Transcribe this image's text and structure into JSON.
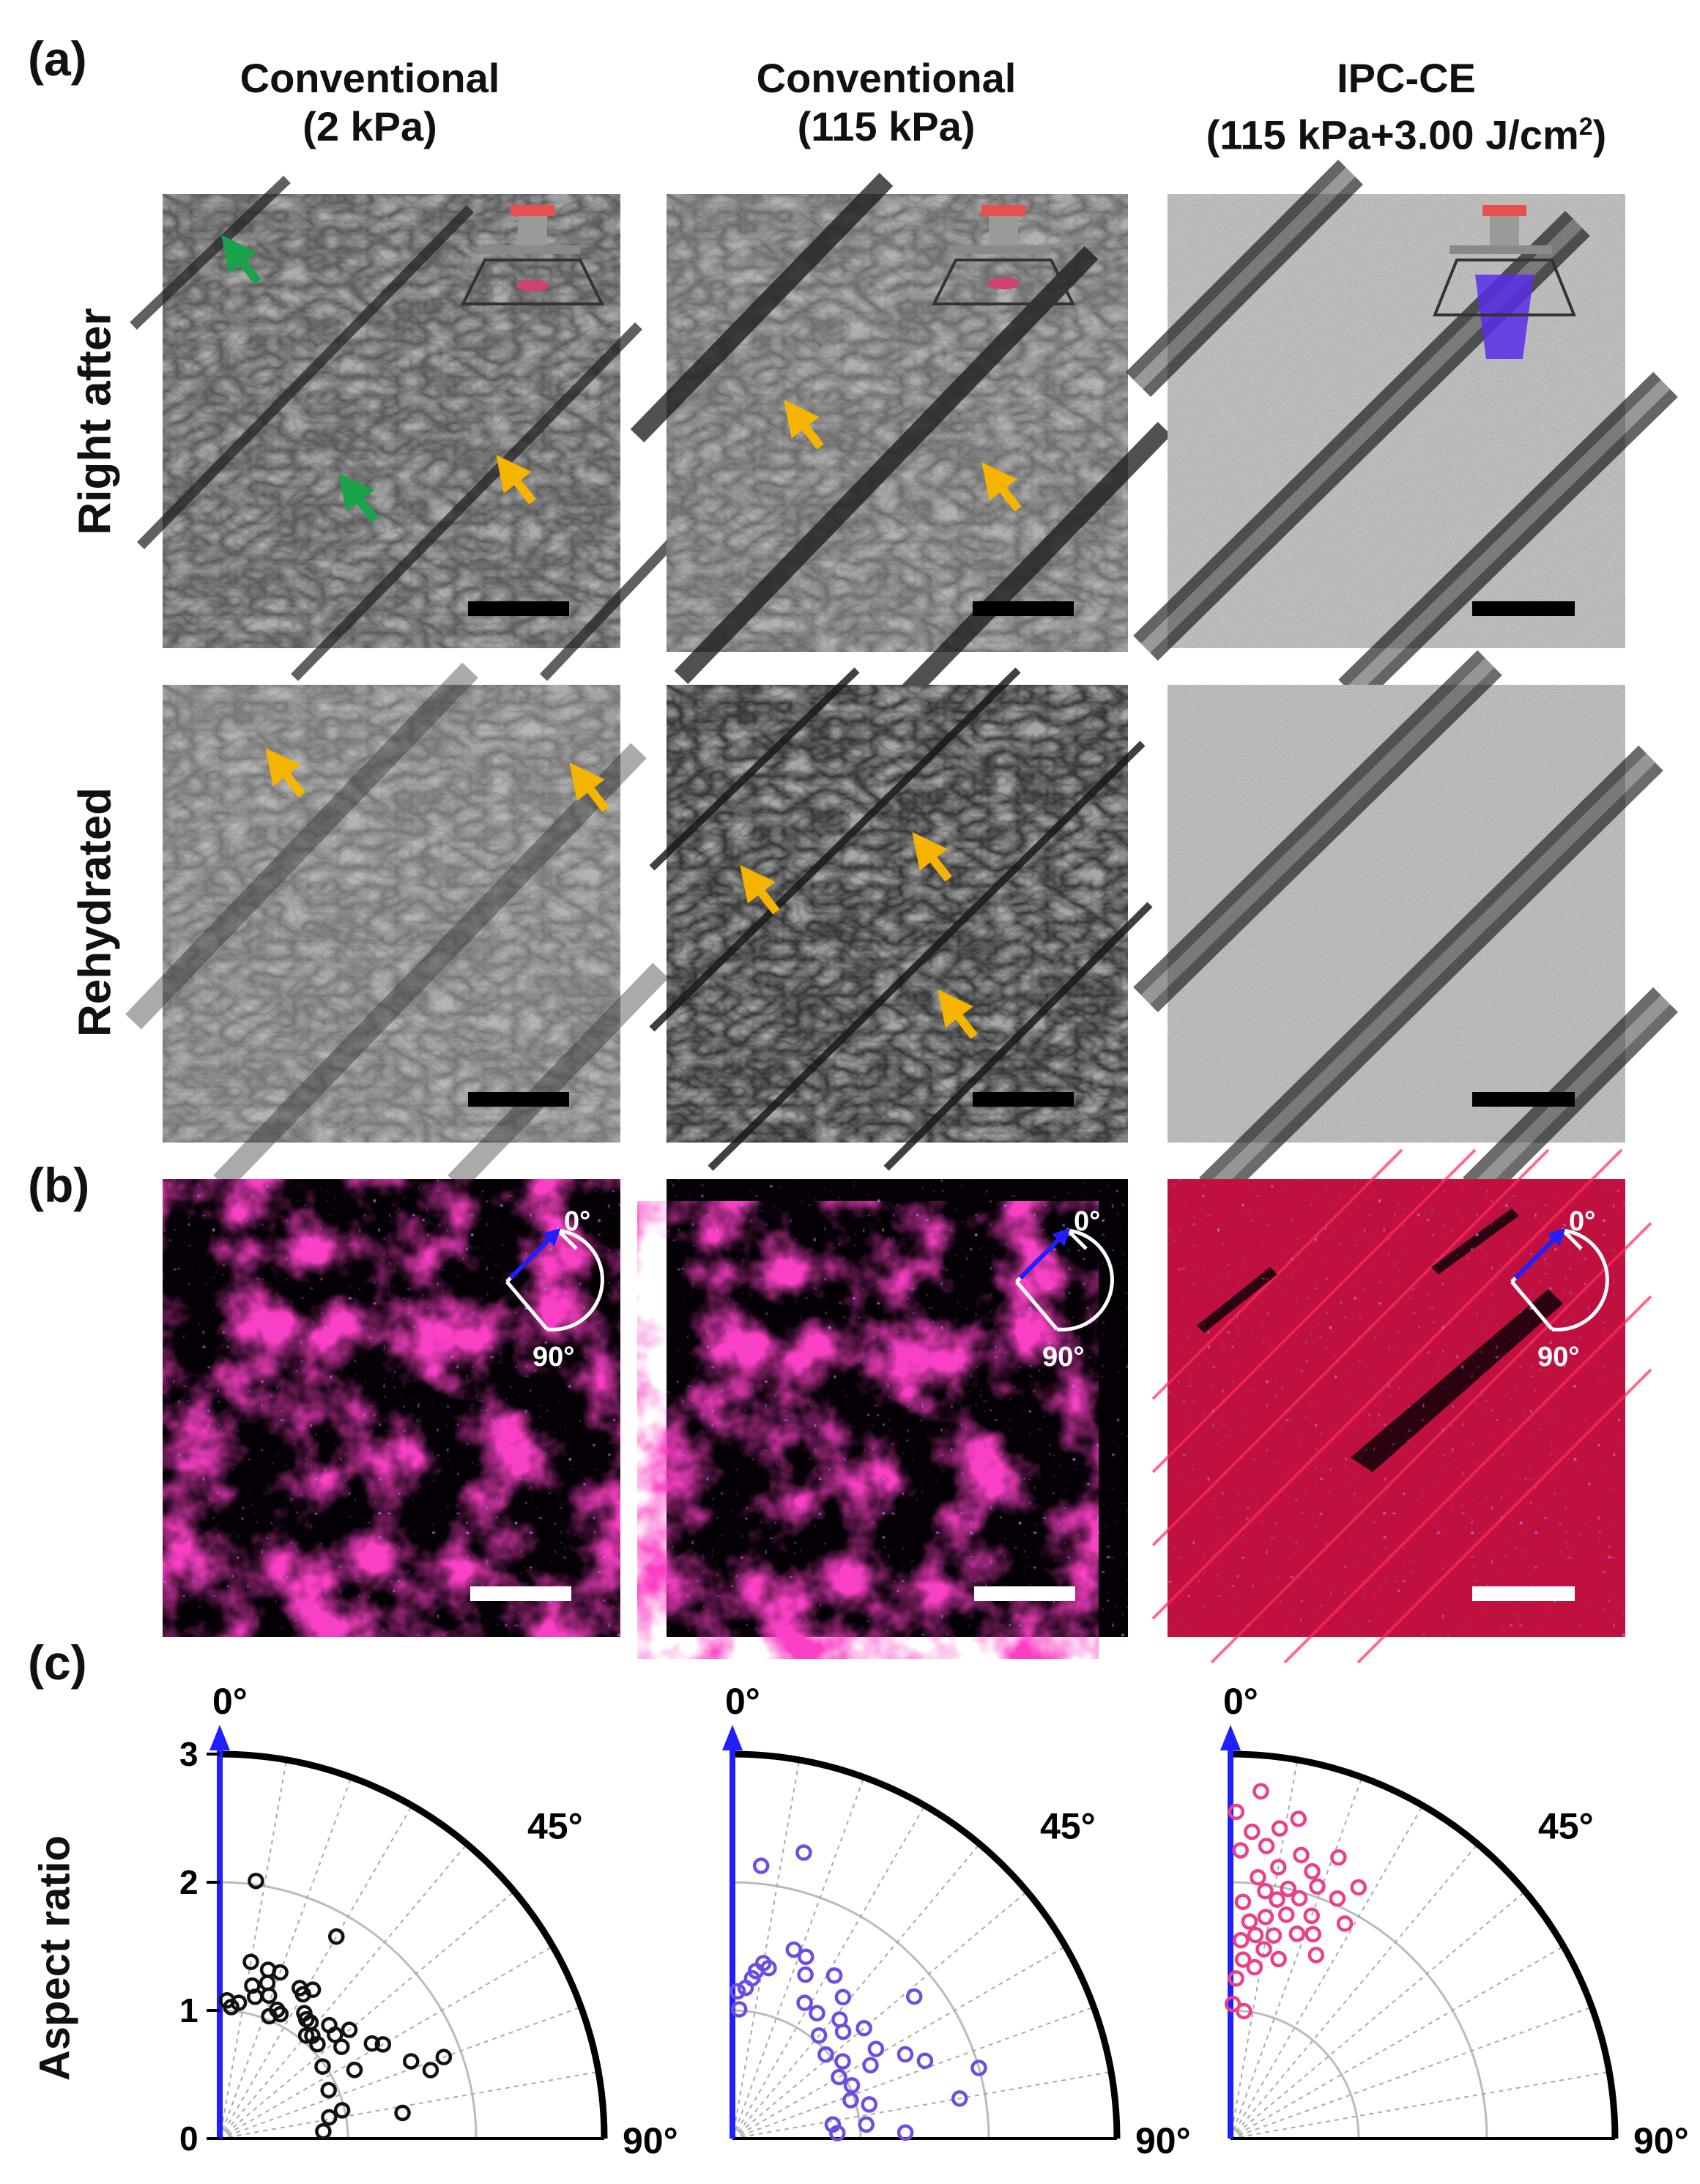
{
  "panels": {
    "a": "(a)",
    "b": "(b)",
    "c": "(c)"
  },
  "columns": [
    {
      "line1": "Conventional",
      "line2": "(2 kPa)"
    },
    {
      "line1": "Conventional",
      "line2": "(115 kPa)"
    },
    {
      "line1": "IPC-CE",
      "line2": "(115 kPa+3.00 J/cm",
      "sup": "2",
      "close": ")"
    }
  ],
  "rows": {
    "right_after": "Right after",
    "rehydrated": "Rehydrated"
  },
  "orientation_labels": {
    "zero": "0°",
    "ninety": "90°"
  },
  "arrow_colors": {
    "wrinkle": "#f5b400",
    "defect": "#1aa34a"
  },
  "stain_colors": {
    "actin": "#e0103c",
    "nuclei": "#7a30ff"
  },
  "chart_data": [
    {
      "type": "scatter",
      "coordinate": "polar-quadrant",
      "ylabel": "Aspect ratio",
      "radial_ticks": [
        "0",
        "1",
        "2",
        "3"
      ],
      "rlim": [
        0,
        3
      ],
      "angle_ticks": [
        "0°",
        "45°",
        "90°"
      ],
      "reference_axis_color": "#1f1fff",
      "marker_color": "#111111",
      "points": [
        {
          "angle": 8,
          "r": 2.03
        },
        {
          "angle": 30,
          "r": 1.82
        },
        {
          "angle": 3,
          "r": 1.08
        },
        {
          "angle": 5,
          "r": 1.03
        },
        {
          "angle": 8,
          "r": 1.07
        },
        {
          "angle": 10,
          "r": 1.4
        },
        {
          "angle": 12,
          "r": 1.22
        },
        {
          "angle": 14,
          "r": 1.14
        },
        {
          "angle": 16,
          "r": 1.37
        },
        {
          "angle": 17,
          "r": 1.27
        },
        {
          "angle": 19,
          "r": 1.18
        },
        {
          "angle": 20,
          "r": 1.38
        },
        {
          "angle": 22,
          "r": 1.03
        },
        {
          "angle": 24,
          "r": 1.1
        },
        {
          "angle": 26,
          "r": 1.08
        },
        {
          "angle": 28,
          "r": 1.33
        },
        {
          "angle": 30,
          "r": 1.3
        },
        {
          "angle": 32,
          "r": 1.37
        },
        {
          "angle": 34,
          "r": 1.18
        },
        {
          "angle": 36,
          "r": 1.15
        },
        {
          "angle": 38,
          "r": 1.15
        },
        {
          "angle": 40,
          "r": 1.05
        },
        {
          "angle": 42,
          "r": 1.08
        },
        {
          "angle": 44,
          "r": 1.23
        },
        {
          "angle": 46,
          "r": 1.06
        },
        {
          "angle": 48,
          "r": 1.21
        },
        {
          "angle": 50,
          "r": 1.32
        },
        {
          "angle": 53,
          "r": 1.19
        },
        {
          "angle": 55,
          "r": 0.98
        },
        {
          "angle": 58,
          "r": 1.4
        },
        {
          "angle": 60,
          "r": 1.47
        },
        {
          "angle": 63,
          "r": 1.18
        },
        {
          "angle": 66,
          "r": 0.93
        },
        {
          "angle": 68,
          "r": 1.61
        },
        {
          "angle": 70,
          "r": 1.86
        },
        {
          "angle": 72,
          "r": 1.73
        },
        {
          "angle": 77,
          "r": 0.98
        },
        {
          "angle": 79,
          "r": 0.87
        },
        {
          "angle": 82,
          "r": 1.44
        },
        {
          "angle": 86,
          "r": 0.81
        }
      ]
    },
    {
      "type": "scatter",
      "coordinate": "polar-quadrant",
      "radial_ticks": [],
      "rlim": [
        0,
        3
      ],
      "angle_ticks": [
        "0°",
        "45°",
        "90°"
      ],
      "reference_axis_color": "#1f1fff",
      "marker_color": "#6a4fe0",
      "points": [
        {
          "angle": 2,
          "r": 1.15
        },
        {
          "angle": 3,
          "r": 1.01
        },
        {
          "angle": 5,
          "r": 1.18
        },
        {
          "angle": 6,
          "r": 2.14
        },
        {
          "angle": 7,
          "r": 1.26
        },
        {
          "angle": 8,
          "r": 1.32
        },
        {
          "angle": 10,
          "r": 1.39
        },
        {
          "angle": 12,
          "r": 1.36
        },
        {
          "angle": 14,
          "r": 2.3
        },
        {
          "angle": 18,
          "r": 1.55
        },
        {
          "angle": 22,
          "r": 1.53
        },
        {
          "angle": 24,
          "r": 1.4
        },
        {
          "angle": 28,
          "r": 1.2
        },
        {
          "angle": 32,
          "r": 1.5
        },
        {
          "angle": 34,
          "r": 1.18
        },
        {
          "angle": 38,
          "r": 1.4
        },
        {
          "angle": 40,
          "r": 1.05
        },
        {
          "angle": 42,
          "r": 1.25
        },
        {
          "angle": 46,
          "r": 1.2
        },
        {
          "angle": 48,
          "r": 0.98
        },
        {
          "angle": 50,
          "r": 1.34
        },
        {
          "angle": 52,
          "r": 1.8
        },
        {
          "angle": 55,
          "r": 1.05
        },
        {
          "angle": 58,
          "r": 1.32
        },
        {
          "angle": 60,
          "r": 0.96
        },
        {
          "angle": 62,
          "r": 1.22
        },
        {
          "angle": 64,
          "r": 1.5
        },
        {
          "angle": 66,
          "r": 1.02
        },
        {
          "angle": 68,
          "r": 1.62
        },
        {
          "angle": 72,
          "r": 0.97
        },
        {
          "angle": 74,
          "r": 2.0
        },
        {
          "angle": 76,
          "r": 1.1
        },
        {
          "angle": 80,
          "r": 1.8
        },
        {
          "angle": 82,
          "r": 0.79
        },
        {
          "angle": 84,
          "r": 1.05
        },
        {
          "angle": 87,
          "r": 0.82
        },
        {
          "angle": 88,
          "r": 1.35
        }
      ]
    },
    {
      "type": "scatter",
      "coordinate": "polar-quadrant",
      "radial_ticks": [],
      "rlim": [
        0,
        3
      ],
      "angle_ticks": [
        "0°",
        "45°",
        "90°"
      ],
      "reference_axis_color": "#1f1fff",
      "marker_color": "#e8408a",
      "points": [
        {
          "angle": 1,
          "r": 1.05
        },
        {
          "angle": 1,
          "r": 2.55
        },
        {
          "angle": 2,
          "r": 1.25
        },
        {
          "angle": 2,
          "r": 2.25
        },
        {
          "angle": 3,
          "r": 1.55
        },
        {
          "angle": 3,
          "r": 1.85
        },
        {
          "angle": 4,
          "r": 2.4
        },
        {
          "angle": 4,
          "r": 1.4
        },
        {
          "angle": 5,
          "r": 2.72
        },
        {
          "angle": 5,
          "r": 1.7
        },
        {
          "angle": 6,
          "r": 2.05
        },
        {
          "angle": 6,
          "r": 1.0
        },
        {
          "angle": 7,
          "r": 2.3
        },
        {
          "angle": 7,
          "r": 1.6
        },
        {
          "angle": 8,
          "r": 1.95
        },
        {
          "angle": 8,
          "r": 1.35
        },
        {
          "angle": 9,
          "r": 2.45
        },
        {
          "angle": 9,
          "r": 1.75
        },
        {
          "angle": 10,
          "r": 2.15
        },
        {
          "angle": 10,
          "r": 1.5
        },
        {
          "angle": 11,
          "r": 1.9
        },
        {
          "angle": 12,
          "r": 2.55
        },
        {
          "angle": 12,
          "r": 1.62
        },
        {
          "angle": 13,
          "r": 2.0
        },
        {
          "angle": 14,
          "r": 1.8
        },
        {
          "angle": 14,
          "r": 2.28
        },
        {
          "angle": 15,
          "r": 1.45
        },
        {
          "angle": 16,
          "r": 1.95
        },
        {
          "angle": 17,
          "r": 2.18
        },
        {
          "angle": 18,
          "r": 1.68
        },
        {
          "angle": 19,
          "r": 2.08
        },
        {
          "angle": 20,
          "r": 1.85
        },
        {
          "angle": 21,
          "r": 2.35
        },
        {
          "angle": 22,
          "r": 1.72
        },
        {
          "angle": 24,
          "r": 2.05
        },
        {
          "angle": 25,
          "r": 1.58
        },
        {
          "angle": 27,
          "r": 2.2
        },
        {
          "angle": 28,
          "r": 1.9
        }
      ]
    }
  ]
}
